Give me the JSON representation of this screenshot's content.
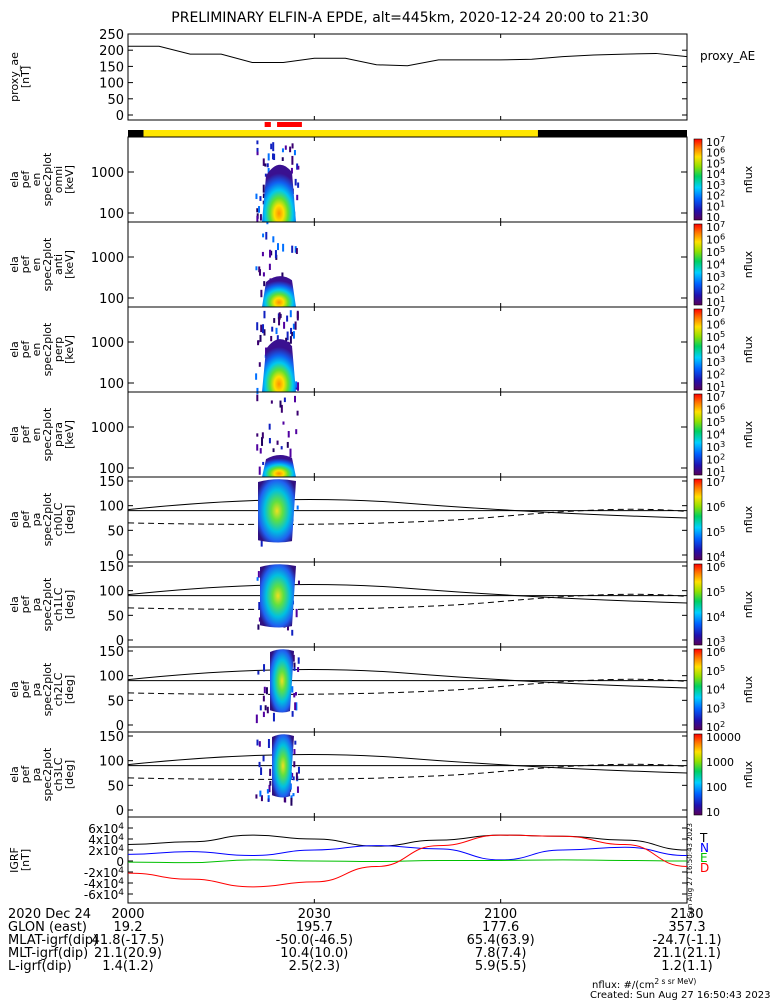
{
  "title": "PRELIMINARY ELFIN-A EPDE, alt=445km, 2020-12-24 20:00 to 21:30",
  "colors": {
    "yellow_bar": "#ffe600",
    "red_marker": "#ff0000",
    "black_bar": "#000000",
    "igrf_t": "#000000",
    "igrf_n": "#0000ff",
    "igrf_e": "#00c000",
    "igrf_d": "#ff0000"
  },
  "chart_data": [
    {
      "type": "line",
      "panel": "proxy_ae",
      "ylabel": [
        "proxy_ae",
        "[nT]"
      ],
      "legend": "proxy_AE",
      "ylim": [
        0,
        250
      ],
      "yticks": [
        "0",
        "50",
        "100",
        "150",
        "200",
        "250"
      ],
      "x_minutes": [
        0,
        5,
        10,
        15,
        20,
        25,
        30,
        35,
        40,
        45,
        50,
        55,
        60,
        65,
        70,
        75,
        80,
        85,
        90
      ],
      "values": [
        212,
        212,
        188,
        188,
        162,
        162,
        175,
        175,
        155,
        152,
        170,
        170,
        170,
        172,
        180,
        185,
        188,
        190,
        180
      ]
    },
    {
      "type": "bar",
      "panel": "status_strip",
      "segments": [
        {
          "start": 0,
          "end": 2.5,
          "color": "black"
        },
        {
          "start": 2.5,
          "end": 66,
          "color": "yellow"
        },
        {
          "start": 66,
          "end": 90,
          "color": "black"
        }
      ],
      "markers": [
        {
          "start": 22,
          "end": 23
        },
        {
          "start": 24,
          "end": 28
        }
      ]
    },
    {
      "type": "heatmap",
      "panel": "en_omni",
      "ylabel": [
        "ela",
        "pef",
        "en",
        "spec2plot",
        "omni",
        "[keV]"
      ],
      "yticks": [
        "100",
        "1000"
      ],
      "cbar_ticks": [
        "10",
        "10^1",
        "10^2",
        "10^3",
        "10^4",
        "10^5",
        "10^6",
        "10^7"
      ],
      "cbar_label": "nflux"
    },
    {
      "type": "heatmap",
      "panel": "en_anti",
      "ylabel": [
        "ela",
        "pef",
        "en",
        "spec2plot",
        "anti",
        "[keV]"
      ],
      "yticks": [
        "100",
        "1000"
      ],
      "cbar_ticks": [
        "10^1",
        "10^2",
        "10^3",
        "10^4",
        "10^5",
        "10^6",
        "10^7"
      ],
      "cbar_label": "nflux"
    },
    {
      "type": "heatmap",
      "panel": "en_perp",
      "ylabel": [
        "ela",
        "pef",
        "en",
        "spec2plot",
        "perp",
        "[keV]"
      ],
      "yticks": [
        "100",
        "1000"
      ],
      "cbar_ticks": [
        "10^1",
        "10^2",
        "10^3",
        "10^4",
        "10^5",
        "10^6",
        "10^7"
      ],
      "cbar_label": "nflux"
    },
    {
      "type": "heatmap",
      "panel": "en_para",
      "ylabel": [
        "ela",
        "pef",
        "en",
        "spec2plot",
        "para",
        "[keV]"
      ],
      "yticks": [
        "100",
        "1000"
      ],
      "cbar_ticks": [
        "10^1",
        "10^2",
        "10^3",
        "10^4",
        "10^5",
        "10^6",
        "10^7"
      ],
      "cbar_label": "nflux"
    },
    {
      "type": "heatmap",
      "panel": "ch0LC",
      "ylabel": [
        "ela",
        "pef",
        "pa",
        "spec2plot",
        "ch0LC",
        "[deg]"
      ],
      "yticks": [
        "0",
        "50",
        "100",
        "150"
      ],
      "cbar_ticks": [
        "10^4",
        "10^5",
        "10^6",
        "10^7"
      ],
      "cbar_label": "nflux"
    },
    {
      "type": "heatmap",
      "panel": "ch1LC",
      "ylabel": [
        "ela",
        "pef",
        "pa",
        "spec2plot",
        "ch1LC",
        "[deg]"
      ],
      "yticks": [
        "0",
        "50",
        "100",
        "150"
      ],
      "cbar_ticks": [
        "10^3",
        "10^4",
        "10^5",
        "10^6"
      ],
      "cbar_label": "nflux"
    },
    {
      "type": "heatmap",
      "panel": "ch2LC",
      "ylabel": [
        "ela",
        "pef",
        "pa",
        "spec2plot",
        "ch2LC",
        "[deg]"
      ],
      "yticks": [
        "0",
        "50",
        "100",
        "150"
      ],
      "cbar_ticks": [
        "10^2",
        "10^3",
        "10^4",
        "10^5",
        "10^6"
      ],
      "cbar_label": "nflux"
    },
    {
      "type": "heatmap",
      "panel": "ch3LC",
      "ylabel": [
        "ela",
        "pef",
        "pa",
        "spec2plot",
        "ch3LC",
        "[deg]"
      ],
      "yticks": [
        "0",
        "50",
        "100",
        "150"
      ],
      "cbar_ticks": [
        "10",
        "100",
        "1000",
        "10000"
      ],
      "cbar_label": "nflux"
    },
    {
      "type": "line",
      "panel": "igrf",
      "ylabel": [
        "IGRF",
        "[nT]"
      ],
      "yticks": [
        "-6x10^4",
        "-4x10^4",
        "-2x10^4",
        "0",
        "2x10^4",
        "4x10^4",
        "6x10^4"
      ],
      "ylim": [
        -65000,
        65000
      ],
      "legend": [
        "T",
        "N",
        "E",
        "D"
      ],
      "side_text": "Sun Aug 27 16:50:43 2023",
      "x_minutes": [
        0,
        10,
        20,
        30,
        40,
        50,
        60,
        70,
        80,
        90
      ],
      "series": [
        {
          "name": "T",
          "values": [
            30000,
            35000,
            47000,
            40000,
            27000,
            38000,
            47000,
            45000,
            38000,
            20000
          ]
        },
        {
          "name": "N",
          "values": [
            12000,
            17000,
            10000,
            20000,
            28000,
            22000,
            2000,
            20000,
            25000,
            10000
          ]
        },
        {
          "name": "E",
          "values": [
            -2000,
            -3000,
            2000,
            0,
            -1000,
            1000,
            1000,
            2000,
            1000,
            0
          ]
        },
        {
          "name": "D",
          "values": [
            -22000,
            -33000,
            -47000,
            -38000,
            -10000,
            28000,
            47000,
            45000,
            30000,
            -10000
          ]
        }
      ]
    }
  ],
  "x_axis": {
    "row_labels": [
      "2020 Dec 24",
      "GLON (east)",
      "MLAT-igrf(dip)",
      "MLT-igrf(dip)",
      "L-igrf(dip)"
    ],
    "columns": [
      {
        "tick": "2000",
        "values": [
          "19.2",
          "41.8(-17.5)",
          "21.1(20.9)",
          "1.4(1.2)"
        ]
      },
      {
        "tick": "2030",
        "values": [
          "195.7",
          "-50.0(-46.5)",
          "10.4(10.0)",
          "2.5(2.3)"
        ]
      },
      {
        "tick": "2100",
        "values": [
          "177.6",
          "65.4(63.9)",
          "7.8(7.4)",
          "5.9(5.5)"
        ]
      },
      {
        "tick": "2130",
        "values": [
          "357.3",
          "-24.7(-1.1)",
          "21.1(21.1)",
          "1.2(1.1)"
        ]
      }
    ]
  },
  "footer": {
    "units": "nflux: #/(cm^2 s sr MeV)",
    "created": "Created: Sun Aug 27 16:50:43 2023"
  }
}
